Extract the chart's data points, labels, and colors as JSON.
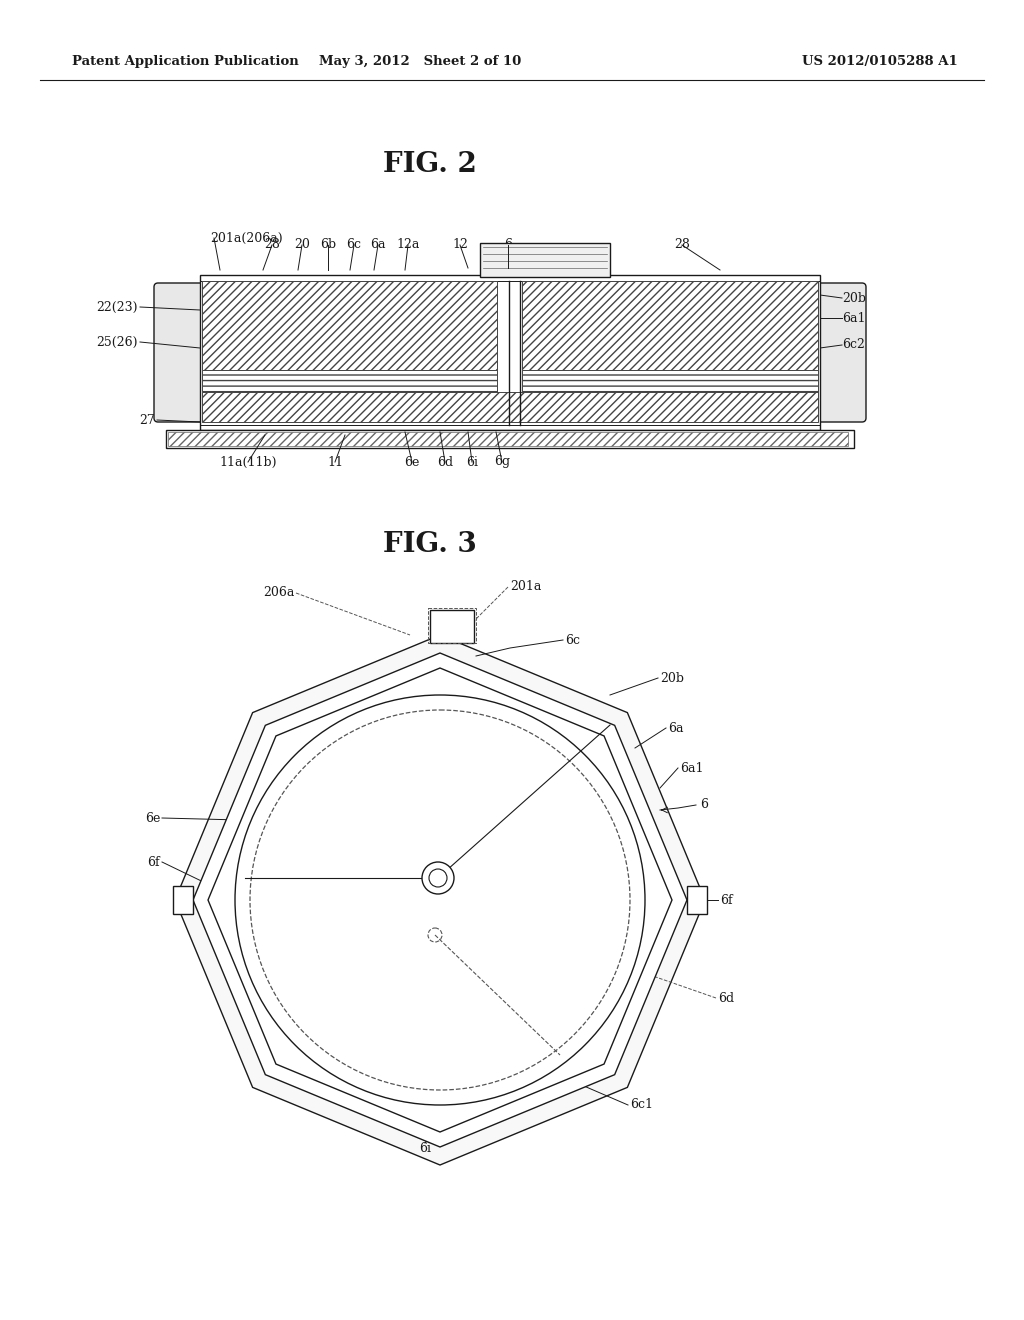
{
  "bg_color": "#ffffff",
  "header_left": "Patent Application Publication",
  "header_mid": "May 3, 2012   Sheet 2 of 10",
  "header_right": "US 2012/0105288 A1",
  "fig2_title": "FIG. 2",
  "fig3_title": "FIG. 3",
  "line_color": "#1a1a1a",
  "lw": 1.0
}
